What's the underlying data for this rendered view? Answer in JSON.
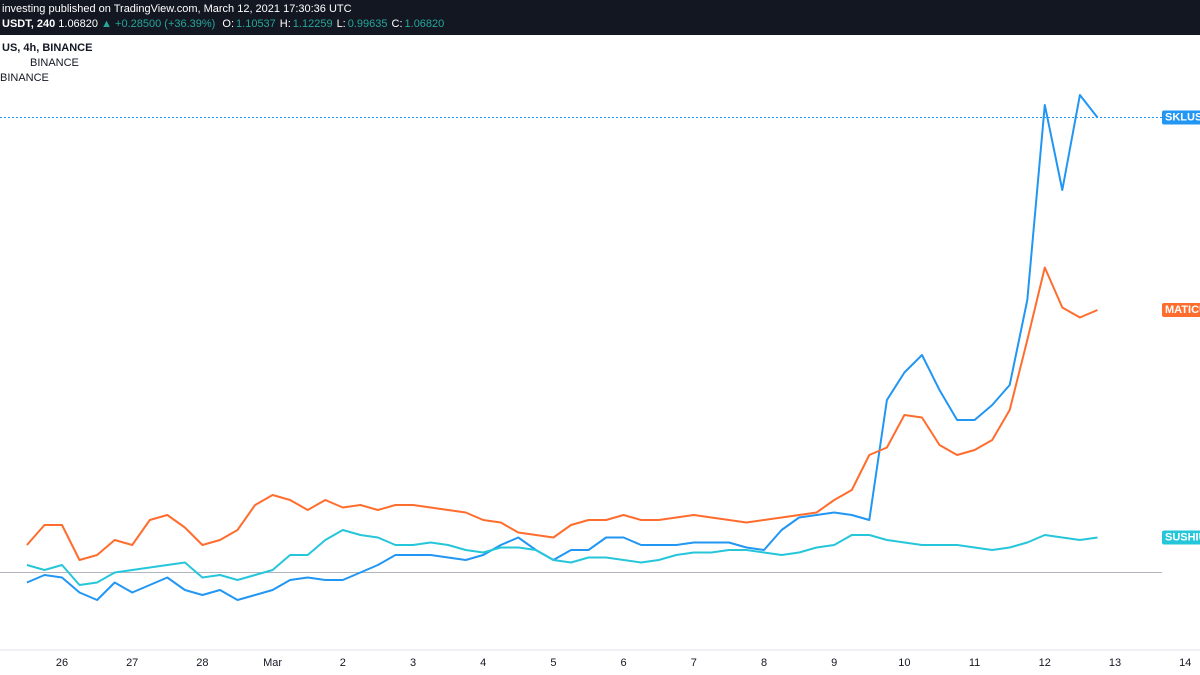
{
  "header": {
    "publisher": "investing published on TradingView.com, March 12, 2021 17:30:36 UTC",
    "symbol": "USDT, 240",
    "price": "1.06820",
    "change": "▲ +0.28500 (+36.39%)",
    "ohlc": [
      {
        "label": "O:",
        "value": "1.10537"
      },
      {
        "label": "H:",
        "value": "1.12259"
      },
      {
        "label": "L:",
        "value": "0.99635"
      },
      {
        "label": "C:",
        "value": "1.06820"
      }
    ]
  },
  "legend": [
    "US, 4h, BINANCE",
    "BINANCE",
    "BINANCE"
  ],
  "chart_data": {
    "type": "line",
    "categories": [
      null,
      null,
      "26",
      null,
      null,
      null,
      "27",
      null,
      null,
      null,
      "28",
      null,
      null,
      null,
      "Mar",
      null,
      null,
      null,
      "2",
      null,
      null,
      null,
      "3",
      null,
      null,
      null,
      "4",
      null,
      null,
      null,
      "5",
      null,
      null,
      null,
      "6",
      null,
      null,
      null,
      "7",
      null,
      null,
      null,
      "8",
      null,
      null,
      null,
      "9",
      null,
      null,
      null,
      "10",
      null,
      null,
      null,
      "11",
      null,
      null,
      null,
      "12",
      null,
      null,
      null,
      "13",
      null,
      null,
      null,
      "14"
    ],
    "ylim": [
      -35,
      215
    ],
    "series": [
      {
        "name": "SKLUSD",
        "color": "#2196f3",
        "values": [
          -4,
          -1,
          -2,
          -8,
          -11,
          -4,
          -8,
          -5,
          -2,
          -7,
          -9,
          -7,
          -11,
          -9,
          -7,
          -3,
          -2,
          -3,
          -3,
          0,
          3,
          7,
          7,
          7,
          6,
          5,
          7,
          11,
          14,
          9,
          5,
          9,
          9,
          14,
          14,
          11,
          11,
          11,
          12,
          12,
          12,
          10,
          9,
          17,
          22,
          23,
          24,
          23,
          21,
          69,
          80,
          87,
          73,
          61,
          61,
          67,
          75,
          109,
          187,
          153,
          191,
          182,
          null,
          null,
          null,
          null,
          null
        ]
      },
      {
        "name": "MATICUSD",
        "color": "#ff6d2e",
        "values": [
          11,
          19,
          19,
          5,
          7,
          13,
          11,
          21,
          23,
          18,
          11,
          13,
          17,
          27,
          31,
          29,
          25,
          29,
          26,
          27,
          25,
          27,
          27,
          26,
          25,
          24,
          21,
          20,
          16,
          15,
          14,
          19,
          21,
          21,
          23,
          21,
          21,
          22,
          23,
          22,
          21,
          20,
          21,
          22,
          23,
          24,
          29,
          33,
          47,
          50,
          63,
          62,
          51,
          47,
          49,
          53,
          65,
          93,
          122,
          106,
          102,
          105,
          null,
          null,
          null,
          null,
          null
        ]
      },
      {
        "name": "SUSHIUSD",
        "color": "#26c6da",
        "values": [
          3,
          1,
          3,
          -5,
          -4,
          0,
          1,
          2,
          3,
          4,
          -2,
          -1,
          -3,
          -1,
          1,
          7,
          7,
          13,
          17,
          15,
          14,
          11,
          11,
          12,
          11,
          9,
          8,
          10,
          10,
          9,
          5,
          4,
          6,
          6,
          5,
          4,
          5,
          7,
          8,
          8,
          9,
          9,
          8,
          7,
          8,
          10,
          11,
          15,
          15,
          13,
          12,
          11,
          11,
          11,
          10,
          9,
          10,
          12,
          15,
          14,
          13,
          14,
          null,
          null,
          null,
          null,
          null
        ]
      }
    ]
  }
}
